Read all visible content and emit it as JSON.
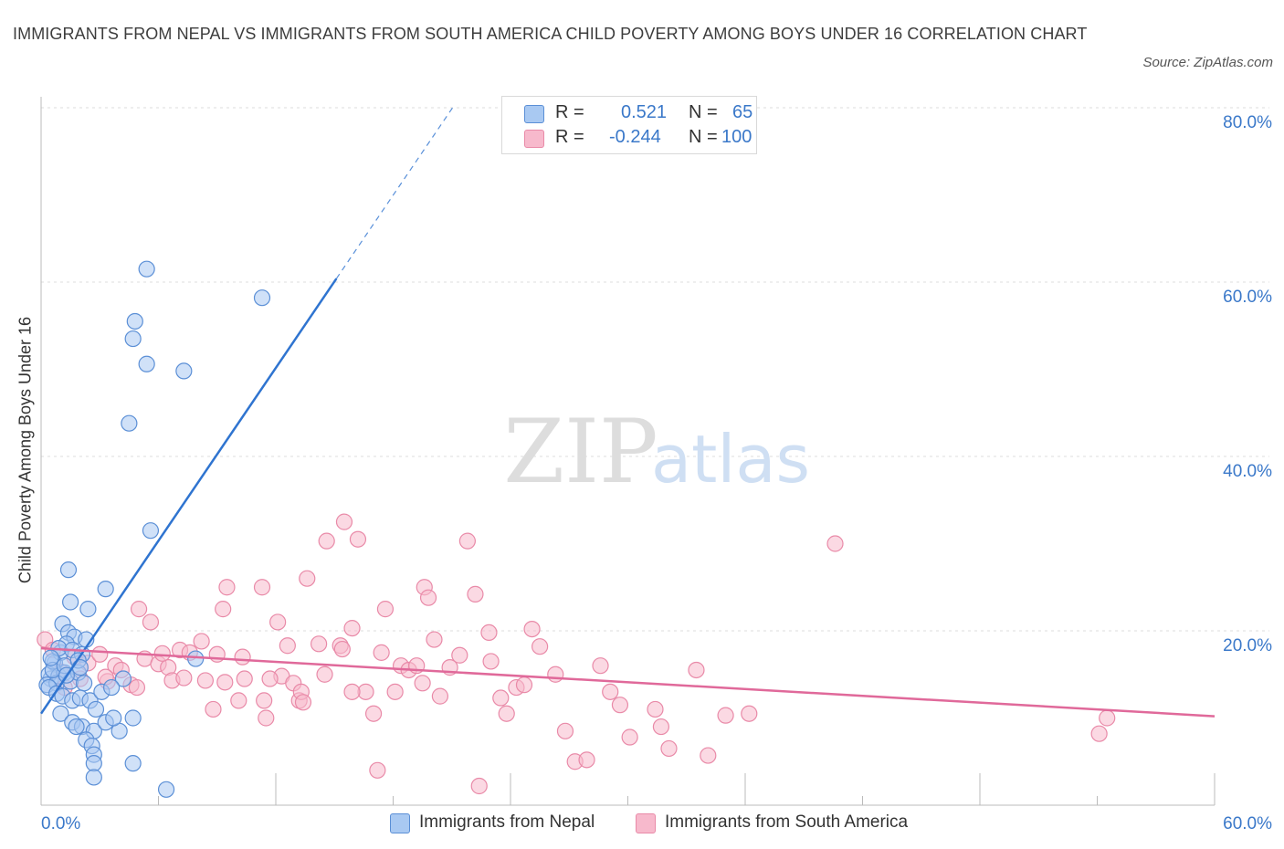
{
  "header": {
    "title": "IMMIGRANTS FROM NEPAL VS IMMIGRANTS FROM SOUTH AMERICA CHILD POVERTY AMONG BOYS UNDER 16 CORRELATION CHART",
    "source": "Source: ZipAtlas.com"
  },
  "watermark": {
    "zip": "ZIP",
    "atlas": "atlas"
  },
  "legend": {
    "rows": [
      {
        "r_label": "R =",
        "r_value": "0.521",
        "n_label": "N =",
        "n_value": "65",
        "color": "#a9c9f2"
      },
      {
        "r_label": "R =",
        "r_value": "-0.244",
        "n_label": "N =",
        "n_value": "100",
        "color": "#f7b9cc"
      }
    ]
  },
  "bottom_legend": [
    "Immigrants from Nepal",
    "Immigrants from South America"
  ],
  "colors": {
    "nepal_fill": "#a9c9f2",
    "nepal_stroke": "#5b8fd6",
    "nepal_line": "#2f74d0",
    "sa_fill": "#f7b9cc",
    "sa_stroke": "#e98aa8",
    "sa_line": "#e0699a",
    "tick_text": "#3a78c9",
    "grid": "#dcdcdc"
  },
  "chart_data": {
    "type": "scatter",
    "title": "IMMIGRANTS FROM NEPAL VS IMMIGRANTS FROM SOUTH AMERICA CHILD POVERTY AMONG BOYS UNDER 16 CORRELATION CHART",
    "ylabel": "Child Poverty Among Boys Under 16",
    "xlabel": "",
    "xlim": [
      0,
      60
    ],
    "ylim": [
      0,
      80
    ],
    "x_tick_labels": [
      "0.0%",
      "60.0%"
    ],
    "y_ticks": [
      20,
      40,
      60,
      80
    ],
    "y_tick_labels": [
      "20.0%",
      "40.0%",
      "60.0%",
      "80.0%"
    ],
    "grid": true,
    "legend_position": "top-center",
    "series": [
      {
        "name": "Immigrants from Nepal",
        "R": 0.521,
        "N": 65,
        "trend": {
          "x": [
            0,
            15.1
          ],
          "y": [
            10.5,
            60.4
          ],
          "dashed_to": {
            "x": 21.1,
            "y": 80.2
          }
        },
        "points": [
          [
            0.5,
            14.5
          ],
          [
            0.7,
            16.3
          ],
          [
            0.4,
            15.0
          ],
          [
            0.9,
            14.8
          ],
          [
            0.3,
            13.8
          ],
          [
            1.0,
            17.5
          ],
          [
            0.6,
            16.5
          ],
          [
            1.2,
            15.2
          ],
          [
            0.8,
            14.0
          ],
          [
            1.5,
            14.2
          ],
          [
            1.1,
            20.8
          ],
          [
            1.4,
            19.8
          ],
          [
            1.7,
            19.3
          ],
          [
            1.3,
            18.5
          ],
          [
            0.9,
            18.0
          ],
          [
            1.6,
            17.8
          ],
          [
            2.1,
            17.3
          ],
          [
            2.3,
            19.0
          ],
          [
            1.9,
            15.2
          ],
          [
            2.2,
            14.0
          ],
          [
            0.4,
            13.5
          ],
          [
            0.8,
            12.8
          ],
          [
            1.1,
            12.5
          ],
          [
            1.6,
            12.0
          ],
          [
            2.0,
            12.3
          ],
          [
            2.5,
            12.0
          ],
          [
            3.1,
            13.0
          ],
          [
            1.0,
            10.5
          ],
          [
            1.6,
            9.5
          ],
          [
            2.1,
            9.0
          ],
          [
            2.7,
            8.5
          ],
          [
            3.3,
            9.5
          ],
          [
            1.8,
            9.0
          ],
          [
            2.3,
            7.5
          ],
          [
            2.6,
            6.8
          ],
          [
            2.7,
            5.8
          ],
          [
            2.7,
            4.8
          ],
          [
            2.7,
            3.2
          ],
          [
            4.7,
            4.8
          ],
          [
            4.0,
            8.5
          ],
          [
            4.7,
            10.0
          ],
          [
            3.7,
            10.0
          ],
          [
            2.8,
            11.0
          ],
          [
            1.4,
            27.0
          ],
          [
            1.5,
            23.3
          ],
          [
            2.4,
            22.5
          ],
          [
            3.3,
            24.8
          ],
          [
            5.6,
            31.5
          ],
          [
            4.5,
            43.8
          ],
          [
            5.4,
            50.6
          ],
          [
            4.7,
            53.5
          ],
          [
            4.8,
            55.5
          ],
          [
            5.4,
            61.5
          ],
          [
            7.3,
            49.8
          ],
          [
            11.3,
            58.2
          ],
          [
            6.4,
            1.8
          ],
          [
            7.9,
            16.8
          ],
          [
            4.2,
            14.5
          ],
          [
            3.6,
            13.5
          ],
          [
            0.6,
            15.5
          ],
          [
            1.2,
            16.0
          ],
          [
            1.9,
            16.6
          ],
          [
            0.5,
            16.9
          ],
          [
            1.3,
            14.9
          ],
          [
            2.0,
            15.8
          ]
        ]
      },
      {
        "name": "Immigrants from South America",
        "R": -0.244,
        "N": 100,
        "trend": {
          "x": [
            0,
            60
          ],
          "y": [
            18.0,
            10.2
          ]
        },
        "points": [
          [
            0.2,
            19.0
          ],
          [
            0.6,
            17.8
          ],
          [
            1.0,
            15.3
          ],
          [
            1.2,
            13.5
          ],
          [
            1.7,
            17.0
          ],
          [
            2.0,
            14.5
          ],
          [
            2.4,
            16.3
          ],
          [
            3.0,
            17.3
          ],
          [
            3.4,
            14.2
          ],
          [
            3.8,
            16.0
          ],
          [
            4.1,
            15.5
          ],
          [
            4.6,
            13.8
          ],
          [
            5.0,
            22.5
          ],
          [
            5.6,
            21.0
          ],
          [
            5.3,
            16.8
          ],
          [
            6.0,
            16.2
          ],
          [
            6.5,
            15.8
          ],
          [
            6.2,
            17.4
          ],
          [
            7.1,
            17.8
          ],
          [
            6.7,
            14.3
          ],
          [
            7.6,
            17.5
          ],
          [
            8.2,
            18.8
          ],
          [
            8.4,
            14.3
          ],
          [
            9.0,
            17.3
          ],
          [
            9.4,
            14.1
          ],
          [
            9.5,
            25.0
          ],
          [
            9.3,
            22.5
          ],
          [
            10.3,
            17.0
          ],
          [
            10.4,
            14.5
          ],
          [
            11.3,
            25.0
          ],
          [
            11.4,
            12.0
          ],
          [
            12.1,
            21.0
          ],
          [
            12.3,
            14.8
          ],
          [
            12.6,
            18.3
          ],
          [
            12.9,
            14.0
          ],
          [
            13.2,
            12.0
          ],
          [
            13.3,
            13.0
          ],
          [
            13.6,
            26.0
          ],
          [
            14.2,
            18.5
          ],
          [
            14.6,
            30.3
          ],
          [
            14.5,
            15.0
          ],
          [
            15.3,
            18.3
          ],
          [
            15.4,
            17.9
          ],
          [
            15.5,
            32.5
          ],
          [
            15.9,
            20.3
          ],
          [
            16.2,
            30.5
          ],
          [
            16.6,
            13.0
          ],
          [
            17.0,
            10.5
          ],
          [
            17.4,
            17.5
          ],
          [
            17.6,
            22.5
          ],
          [
            18.1,
            13.0
          ],
          [
            18.4,
            16.0
          ],
          [
            18.8,
            15.5
          ],
          [
            19.2,
            16.0
          ],
          [
            19.6,
            25.0
          ],
          [
            19.8,
            23.8
          ],
          [
            20.1,
            19.0
          ],
          [
            20.4,
            12.5
          ],
          [
            20.9,
            15.8
          ],
          [
            21.4,
            17.2
          ],
          [
            21.8,
            30.3
          ],
          [
            22.2,
            24.2
          ],
          [
            22.9,
            19.8
          ],
          [
            23.0,
            16.5
          ],
          [
            23.5,
            12.3
          ],
          [
            23.8,
            10.5
          ],
          [
            24.3,
            13.5
          ],
          [
            24.7,
            13.8
          ],
          [
            25.1,
            20.2
          ],
          [
            25.5,
            18.2
          ],
          [
            26.3,
            15.0
          ],
          [
            26.8,
            8.5
          ],
          [
            27.3,
            5.0
          ],
          [
            27.9,
            5.2
          ],
          [
            28.6,
            16.0
          ],
          [
            29.1,
            13.0
          ],
          [
            29.6,
            11.5
          ],
          [
            30.1,
            7.8
          ],
          [
            31.7,
            9.0
          ],
          [
            31.4,
            11.0
          ],
          [
            32.1,
            6.5
          ],
          [
            33.5,
            15.5
          ],
          [
            34.1,
            5.7
          ],
          [
            35.0,
            10.3
          ],
          [
            36.2,
            10.5
          ],
          [
            40.6,
            30.0
          ],
          [
            54.1,
            8.2
          ],
          [
            54.5,
            10.0
          ],
          [
            17.2,
            4.0
          ],
          [
            22.4,
            2.2
          ],
          [
            8.8,
            11.0
          ],
          [
            10.1,
            12.0
          ],
          [
            11.5,
            10.0
          ],
          [
            13.4,
            11.8
          ],
          [
            3.3,
            14.7
          ],
          [
            4.9,
            13.5
          ],
          [
            7.3,
            14.6
          ],
          [
            15.9,
            13.0
          ],
          [
            11.7,
            14.5
          ],
          [
            19.5,
            14.0
          ]
        ]
      }
    ]
  }
}
